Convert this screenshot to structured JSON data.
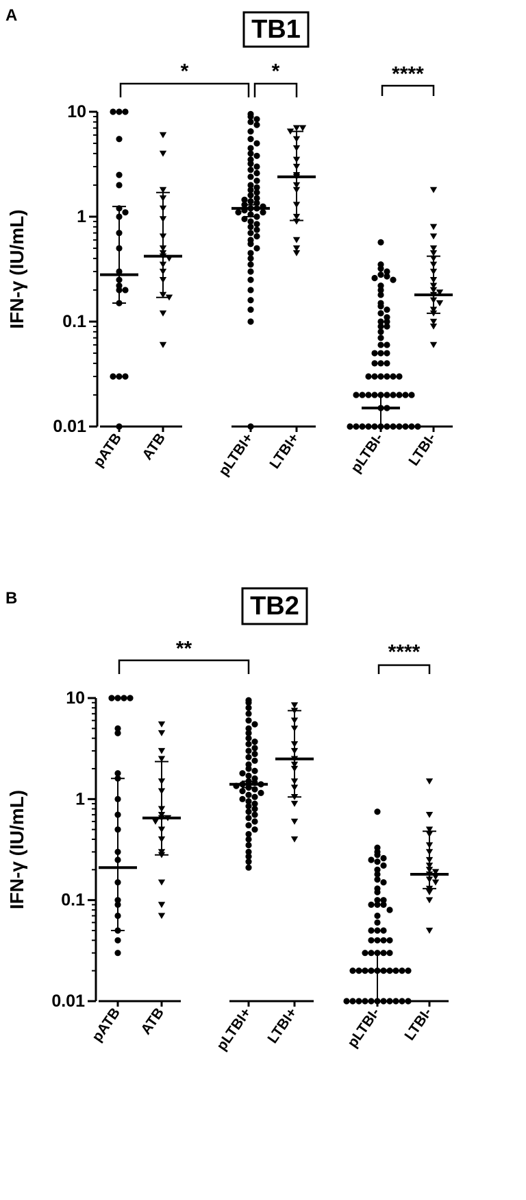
{
  "chart_data": [
    {
      "type": "scatter",
      "panel": "A",
      "title": "TB1",
      "ylabel": "IFN-γ (IU/mL)",
      "yscale": "log",
      "ylim": [
        0.01,
        10
      ],
      "yticks": [
        {
          "value": 10,
          "label": "10"
        },
        {
          "value": 1,
          "label": "1"
        },
        {
          "value": 0.1,
          "label": "0.1"
        },
        {
          "value": 0.01,
          "label": "0.01"
        }
      ],
      "categories": [
        "pATB",
        "ATB",
        "pLTBI+",
        "LTBI+",
        "pLTBI-",
        "LTBI-"
      ],
      "series": [
        {
          "category": "pATB",
          "marker": "circle",
          "median": 0.28,
          "iqr": [
            0.15,
            1.25
          ],
          "values": [
            10,
            10,
            10,
            5.5,
            2.5,
            2.0,
            1.2,
            1.1,
            1.0,
            0.7,
            0.5,
            0.3,
            0.25,
            0.22,
            0.2,
            0.2,
            0.15,
            0.03,
            0.03,
            0.03,
            0.01
          ]
        },
        {
          "category": "ATB",
          "marker": "triangle",
          "median": 0.42,
          "iqr": [
            0.17,
            1.7
          ],
          "values": [
            6.0,
            4.0,
            1.8,
            1.5,
            1.2,
            0.95,
            0.65,
            0.5,
            0.45,
            0.42,
            0.4,
            0.35,
            0.3,
            0.25,
            0.18,
            0.17,
            0.12,
            0.06
          ]
        },
        {
          "category": "pLTBI+",
          "marker": "circle",
          "median": 1.2,
          "iqr": [
            1.0,
            1.3
          ],
          "values": [
            9.5,
            9.0,
            8.5,
            8.0,
            7.5,
            6.5,
            5.5,
            5.0,
            4.5,
            4.0,
            3.8,
            3.5,
            3.2,
            3.0,
            2.8,
            2.6,
            2.4,
            2.2,
            2.0,
            1.9,
            1.8,
            1.7,
            1.6,
            1.5,
            1.45,
            1.4,
            1.35,
            1.3,
            1.25,
            1.2,
            1.2,
            1.15,
            1.1,
            1.1,
            1.05,
            1.0,
            0.95,
            0.9,
            0.85,
            0.8,
            0.75,
            0.7,
            0.65,
            0.6,
            0.55,
            0.5,
            0.45,
            0.4,
            0.35,
            0.3,
            0.25,
            0.2,
            0.16,
            0.13,
            0.1,
            0.01
          ]
        },
        {
          "category": "LTBI+",
          "marker": "triangle",
          "median": 2.4,
          "iqr": [
            0.92,
            6.5
          ],
          "values": [
            7.0,
            7.0,
            6.5,
            5.5,
            4.5,
            3.5,
            3.0,
            2.5,
            2.4,
            2.0,
            1.8,
            1.3,
            1.0,
            0.9,
            0.6,
            0.5,
            0.45
          ]
        },
        {
          "category": "pLTBI-",
          "marker": "circle",
          "median": 0.015,
          "iqr": [
            0.01,
            0.02
          ],
          "values": [
            0.57,
            0.35,
            0.32,
            0.3,
            0.28,
            0.27,
            0.26,
            0.25,
            0.22,
            0.2,
            0.18,
            0.15,
            0.14,
            0.13,
            0.12,
            0.11,
            0.1,
            0.1,
            0.09,
            0.09,
            0.08,
            0.07,
            0.06,
            0.06,
            0.05,
            0.05,
            0.05,
            0.04,
            0.04,
            0.04,
            0.03,
            0.03,
            0.03,
            0.03,
            0.03,
            0.03,
            0.02,
            0.02,
            0.02,
            0.02,
            0.02,
            0.02,
            0.02,
            0.02,
            0.02,
            0.02,
            0.015,
            0.015,
            0.01,
            0.01,
            0.01,
            0.01,
            0.01,
            0.01,
            0.01,
            0.01,
            0.01,
            0.01,
            0.01,
            0.01
          ]
        },
        {
          "category": "LTBI-",
          "marker": "triangle",
          "median": 0.18,
          "iqr": [
            0.12,
            0.42
          ],
          "values": [
            1.8,
            0.8,
            0.65,
            0.5,
            0.45,
            0.4,
            0.35,
            0.3,
            0.25,
            0.22,
            0.2,
            0.19,
            0.18,
            0.16,
            0.15,
            0.13,
            0.12,
            0.1,
            0.09,
            0.06
          ]
        }
      ],
      "significance": [
        {
          "from": "pATB",
          "to": "pLTBI+",
          "label": "*"
        },
        {
          "from": "pLTBI+",
          "to": "LTBI+",
          "label": "*"
        },
        {
          "from": "pLTBI-",
          "to": "LTBI-",
          "label": "****"
        }
      ]
    },
    {
      "type": "scatter",
      "panel": "B",
      "title": "TB2",
      "ylabel": "IFN-γ (IU/mL)",
      "yscale": "log",
      "ylim": [
        0.01,
        10
      ],
      "yticks": [
        {
          "value": 10,
          "label": "10"
        },
        {
          "value": 1,
          "label": "1"
        },
        {
          "value": 0.1,
          "label": "0.1"
        },
        {
          "value": 0.01,
          "label": "0.01"
        }
      ],
      "categories": [
        "pATB",
        "ATB",
        "pLTBI+",
        "LTBI+",
        "pLTBI-",
        "LTBI-"
      ],
      "series": [
        {
          "category": "pATB",
          "marker": "circle",
          "median": 0.21,
          "iqr": [
            0.05,
            1.6
          ],
          "values": [
            10,
            10,
            10,
            10,
            5.0,
            4.5,
            1.8,
            1.6,
            1.0,
            0.7,
            0.5,
            0.3,
            0.25,
            0.15,
            0.1,
            0.09,
            0.07,
            0.05,
            0.04,
            0.03
          ]
        },
        {
          "category": "ATB",
          "marker": "triangle",
          "median": 0.65,
          "iqr": [
            0.28,
            2.35
          ],
          "values": [
            5.5,
            4.5,
            3.0,
            2.5,
            1.5,
            1.2,
            0.8,
            0.7,
            0.65,
            0.65,
            0.6,
            0.5,
            0.4,
            0.3,
            0.28,
            0.15,
            0.09,
            0.07
          ]
        },
        {
          "category": "pLTBI+",
          "marker": "circle",
          "median": 1.4,
          "iqr": [
            1.3,
            1.5
          ],
          "values": [
            9.5,
            9.0,
            8.0,
            7.0,
            6.0,
            5.5,
            5.0,
            4.5,
            4.0,
            3.7,
            3.5,
            3.2,
            3.0,
            2.8,
            2.6,
            2.4,
            2.2,
            2.0,
            1.9,
            1.8,
            1.7,
            1.6,
            1.5,
            1.45,
            1.4,
            1.4,
            1.35,
            1.3,
            1.25,
            1.2,
            1.15,
            1.1,
            1.05,
            1.0,
            0.95,
            0.9,
            0.85,
            0.8,
            0.75,
            0.7,
            0.65,
            0.6,
            0.55,
            0.5,
            0.45,
            0.4,
            0.35,
            0.3,
            0.27,
            0.24,
            0.21
          ]
        },
        {
          "category": "LTBI+",
          "marker": "triangle",
          "median": 2.5,
          "iqr": [
            1.05,
            7.5
          ],
          "values": [
            8.5,
            7.5,
            6.0,
            5.0,
            3.5,
            3.0,
            2.5,
            2.2,
            2.0,
            1.5,
            1.3,
            1.05,
            0.9,
            0.6,
            0.4
          ]
        },
        {
          "category": "pLTBI-",
          "marker": "circle",
          "median": 0.02,
          "iqr": [
            0.01,
            0.03
          ],
          "values": [
            0.75,
            0.33,
            0.3,
            0.28,
            0.26,
            0.25,
            0.24,
            0.22,
            0.2,
            0.18,
            0.16,
            0.15,
            0.13,
            0.12,
            0.1,
            0.1,
            0.09,
            0.09,
            0.09,
            0.08,
            0.07,
            0.06,
            0.05,
            0.05,
            0.05,
            0.04,
            0.04,
            0.04,
            0.04,
            0.03,
            0.03,
            0.03,
            0.03,
            0.03,
            0.02,
            0.02,
            0.02,
            0.02,
            0.02,
            0.02,
            0.02,
            0.02,
            0.02,
            0.02,
            0.01,
            0.01,
            0.01,
            0.01,
            0.01,
            0.01,
            0.01,
            0.01,
            0.01,
            0.01,
            0.01
          ]
        },
        {
          "category": "LTBI-",
          "marker": "triangle",
          "median": 0.18,
          "iqr": [
            0.13,
            0.48
          ],
          "values": [
            1.5,
            0.7,
            0.5,
            0.45,
            0.35,
            0.3,
            0.25,
            0.22,
            0.2,
            0.19,
            0.18,
            0.17,
            0.16,
            0.15,
            0.13,
            0.12,
            0.1,
            0.05
          ]
        }
      ],
      "significance": [
        {
          "from": "pATB",
          "to": "pLTBI+",
          "label": "**"
        },
        {
          "from": "pLTBI-",
          "to": "LTBI-",
          "label": "****"
        }
      ]
    }
  ]
}
